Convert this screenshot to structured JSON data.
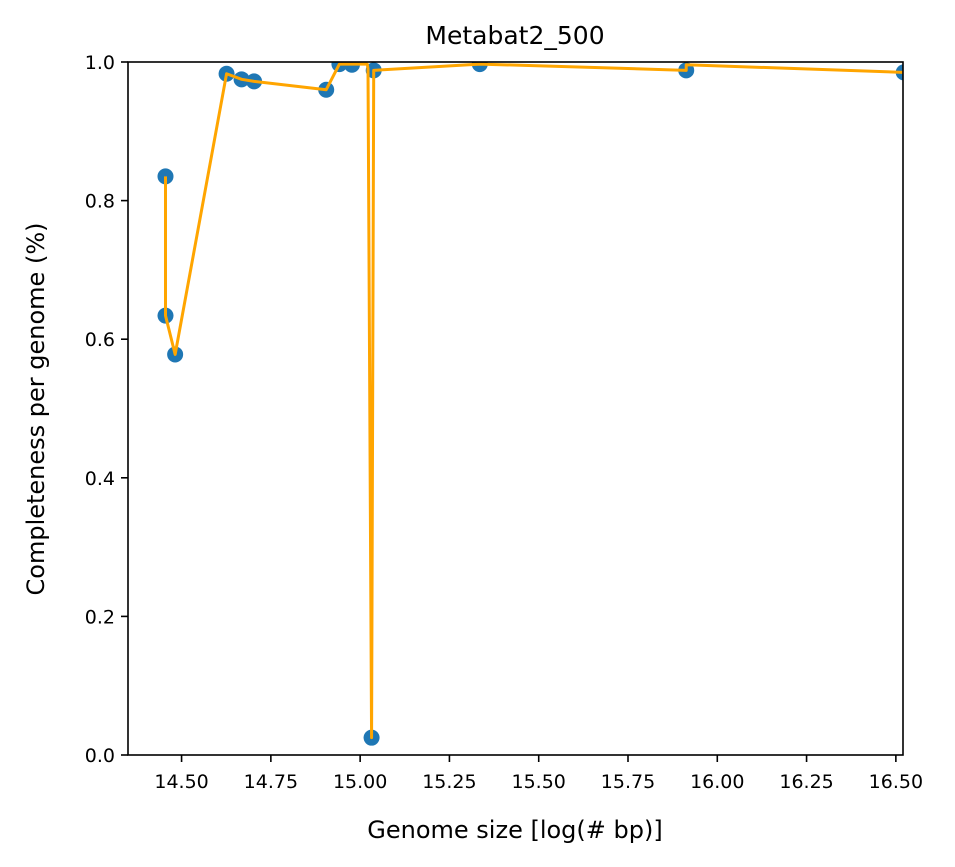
{
  "chart_data": {
    "type": "scatter",
    "title": "Metabat2_500",
    "xlabel": "Genome size [log(# bp)]",
    "ylabel": "Completeness per genome (%)",
    "xlim": [
      14.35,
      16.52
    ],
    "ylim": [
      0.0,
      1.0
    ],
    "xticks": [
      14.5,
      14.75,
      15.0,
      15.25,
      15.5,
      15.75,
      16.0,
      16.25,
      16.5
    ],
    "xtick_labels": [
      "14.50",
      "14.75",
      "15.00",
      "15.25",
      "15.50",
      "15.75",
      "16.00",
      "16.25",
      "16.50"
    ],
    "yticks": [
      0.0,
      0.2,
      0.4,
      0.6,
      0.8,
      1.0
    ],
    "ytick_labels": [
      "0.0",
      "0.2",
      "0.4",
      "0.6",
      "0.8",
      "1.0"
    ],
    "grid": false,
    "legend": "none",
    "colors": {
      "points": "#1f77b4",
      "line": "#ffa500",
      "axes": "#000000"
    },
    "scatter_points": [
      {
        "x": 14.455,
        "y": 0.835
      },
      {
        "x": 14.455,
        "y": 0.634
      },
      {
        "x": 14.482,
        "y": 0.578
      },
      {
        "x": 14.626,
        "y": 0.983
      },
      {
        "x": 14.668,
        "y": 0.975
      },
      {
        "x": 14.703,
        "y": 0.972
      },
      {
        "x": 14.905,
        "y": 0.96
      },
      {
        "x": 14.942,
        "y": 0.997
      },
      {
        "x": 14.977,
        "y": 0.996
      },
      {
        "x": 15.032,
        "y": 0.025
      },
      {
        "x": 15.038,
        "y": 0.988
      },
      {
        "x": 15.335,
        "y": 0.997
      },
      {
        "x": 15.913,
        "y": 0.988
      },
      {
        "x": 16.522,
        "y": 0.985
      }
    ],
    "line_points": [
      {
        "x": 14.455,
        "y": 0.835
      },
      {
        "x": 14.455,
        "y": 0.634
      },
      {
        "x": 14.482,
        "y": 0.578
      },
      {
        "x": 14.626,
        "y": 0.983
      },
      {
        "x": 14.668,
        "y": 0.975
      },
      {
        "x": 14.703,
        "y": 0.972
      },
      {
        "x": 14.905,
        "y": 0.96
      },
      {
        "x": 14.942,
        "y": 0.997
      },
      {
        "x": 15.02,
        "y": 0.997
      },
      {
        "x": 15.022,
        "y": 0.99
      },
      {
        "x": 15.032,
        "y": 0.025
      },
      {
        "x": 15.038,
        "y": 0.988
      },
      {
        "x": 15.335,
        "y": 0.997
      },
      {
        "x": 15.913,
        "y": 0.988
      },
      {
        "x": 15.913,
        "y": 0.996
      },
      {
        "x": 16.522,
        "y": 0.985
      }
    ]
  }
}
